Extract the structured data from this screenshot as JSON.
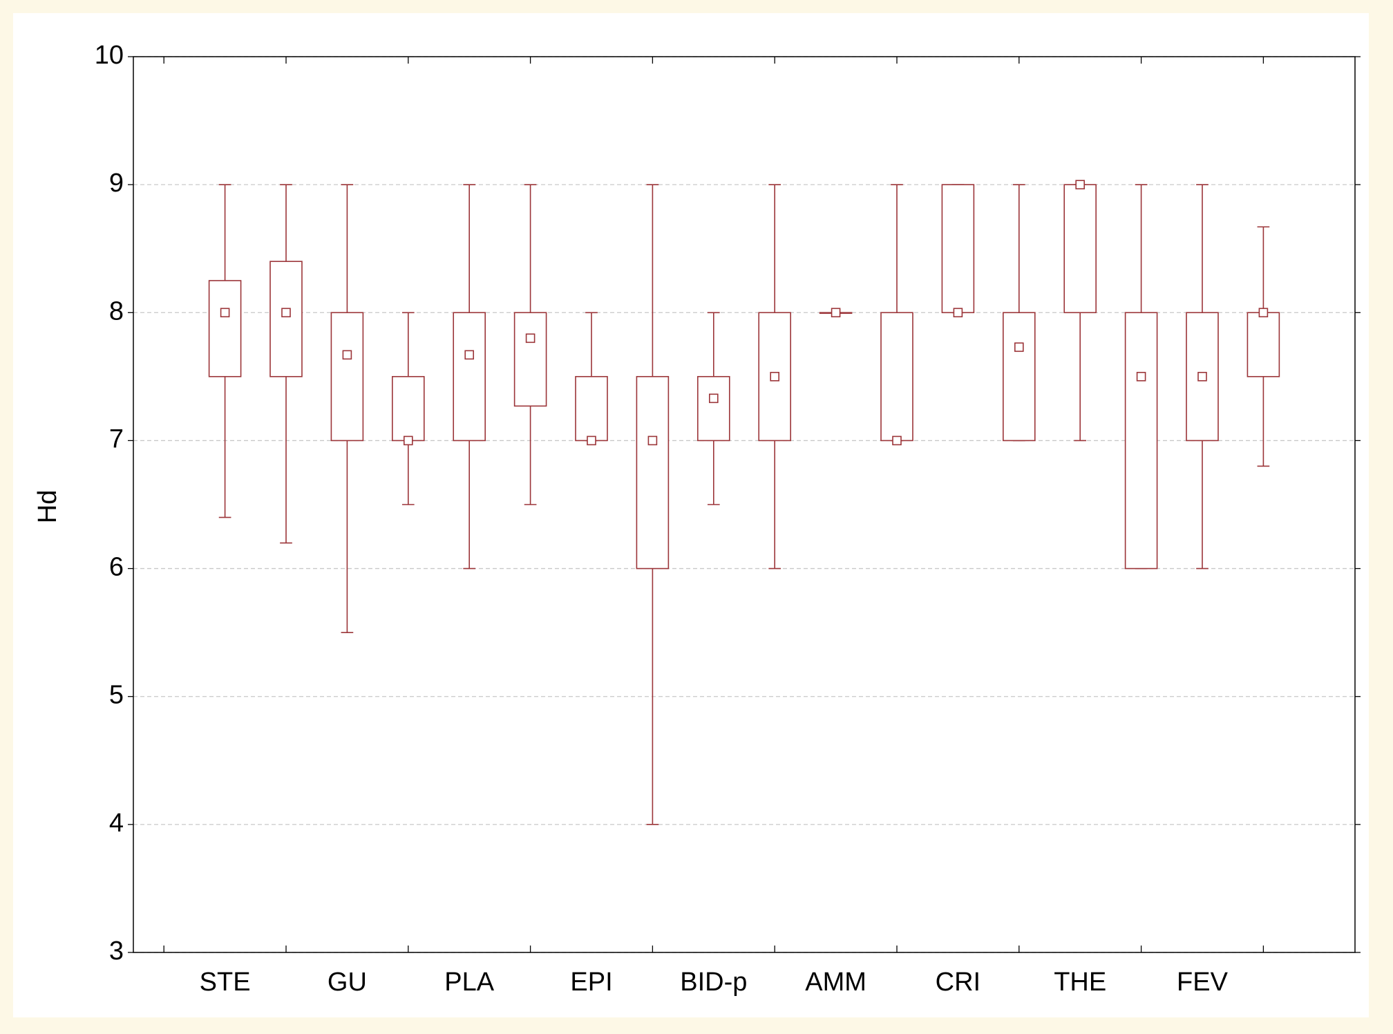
{
  "chart_data": {
    "type": "box",
    "y_label": "Hd",
    "categories": [
      "STE",
      null,
      "GU",
      null,
      "PLA",
      null,
      "EPI",
      null,
      "BID-p",
      null,
      "AMM",
      null,
      "CRI",
      null,
      "THE",
      null,
      "FEV",
      null
    ],
    "color": "#9b3438",
    "mean": [
      8,
      8,
      7.67,
      7,
      7.67,
      7.8,
      7,
      7,
      7.33,
      7.5,
      8,
      7,
      8,
      7.73,
      9,
      7.5,
      7.5,
      8
    ],
    "box_low": [
      7.5,
      7.5,
      7,
      7,
      7,
      7.27,
      7,
      6,
      7,
      7,
      8,
      7,
      8,
      7,
      8,
      6,
      7,
      7.5
    ],
    "box_high": [
      8.25,
      8.4,
      8,
      7.5,
      8,
      8,
      7.5,
      7.5,
      7.5,
      8,
      8,
      8,
      9,
      8,
      9,
      8,
      8,
      8
    ],
    "whisker_low": [
      6.4,
      6.2,
      5.5,
      6.5,
      6,
      6.5,
      7,
      4,
      6.5,
      6,
      8,
      7,
      8,
      7,
      7,
      6,
      6,
      6.8
    ],
    "whisker_high": [
      9,
      9,
      9,
      8,
      9,
      9,
      8,
      9,
      8,
      9,
      8,
      9,
      9,
      9,
      9,
      9,
      9,
      8.67
    ],
    "ylim": [
      3,
      10
    ],
    "yticks": [
      3,
      4,
      5,
      6,
      7,
      8,
      9,
      10
    ],
    "grid": true
  }
}
